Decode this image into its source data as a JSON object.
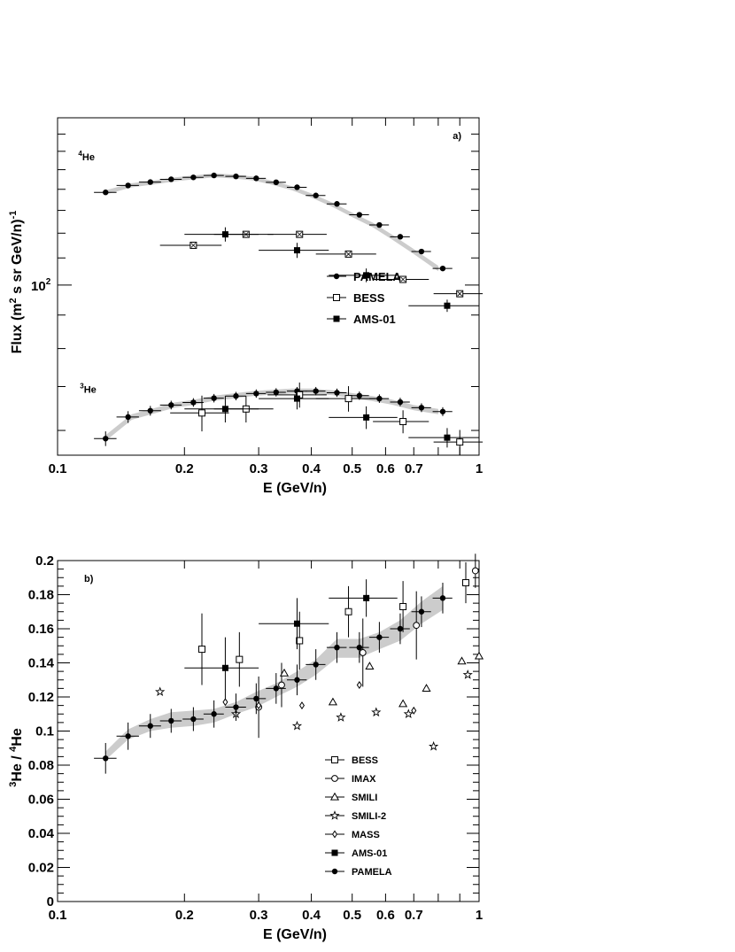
{
  "chart_data": [
    {
      "type": "scatter",
      "panel_label": "a)",
      "xlabel": "E (GeV/n)",
      "ylabel_parts": [
        "Flux (m",
        "2",
        " s sr GeV/n)",
        "-1"
      ],
      "xscale": "log",
      "yscale": "log",
      "xlim": [
        0.1,
        1.0
      ],
      "ylim": [
        55,
        180
      ],
      "x_ticks": [
        {
          "v": 0.1,
          "label": "0.1"
        },
        {
          "v": 0.2,
          "label": "0.2"
        },
        {
          "v": 0.3,
          "label": "0.3"
        },
        {
          "v": 0.4,
          "label": "0.4"
        },
        {
          "v": 0.5,
          "label": "0.5"
        },
        {
          "v": 0.6,
          "label": "0.6"
        },
        {
          "v": 0.7,
          "label": "0.7"
        },
        {
          "v": 1.0,
          "label": "1"
        }
      ],
      "y_ticks": [
        {
          "v": 100,
          "base": "10",
          "exp": "2"
        }
      ],
      "annotations": [
        {
          "text": "He",
          "sup": "4",
          "x": 0.112,
          "y": 155
        },
        {
          "text": "He",
          "sup": "3",
          "x": 0.113,
          "y": 68.5
        }
      ],
      "legend": {
        "placement": "middle-right",
        "entries": [
          "PAMELA",
          "BESS",
          "AMS-01"
        ]
      },
      "bands": [
        {
          "name": "4He",
          "x": [
            0.13,
            0.15,
            0.17,
            0.19,
            0.21,
            0.235,
            0.26,
            0.29,
            0.32,
            0.36,
            0.4,
            0.45,
            0.5,
            0.56,
            0.62,
            0.7,
            0.8
          ],
          "lo": [
            137.5,
            141,
            142.5,
            144,
            145,
            146,
            145.5,
            144.5,
            142.5,
            139.5,
            136,
            131.5,
            127,
            122.5,
            117.5,
            111.5,
            105
          ],
          "hi": [
            139.5,
            143,
            144.5,
            146,
            147,
            148,
            147.5,
            146.5,
            144.5,
            141.5,
            138,
            133.5,
            129,
            124.5,
            119.5,
            113.5,
            107
          ]
        },
        {
          "name": "3He",
          "x": [
            0.13,
            0.15,
            0.17,
            0.19,
            0.21,
            0.235,
            0.26,
            0.29,
            0.32,
            0.36,
            0.4,
            0.45,
            0.5,
            0.56,
            0.62,
            0.7,
            0.8
          ],
          "lo": [
            57.8,
            62.3,
            63.7,
            65,
            65.6,
            66.6,
            67.1,
            67.7,
            68,
            68.3,
            68.3,
            67.9,
            67.2,
            66.5,
            65.7,
            64.4,
            63.5
          ],
          "hi": [
            59,
            63.5,
            64.9,
            66.2,
            66.8,
            67.8,
            68.3,
            68.9,
            69.2,
            69.5,
            69.5,
            69.1,
            68.4,
            67.7,
            66.9,
            65.6,
            64.7
          ]
        }
      ],
      "series": [
        {
          "name": "PAMELA",
          "group": "4He",
          "marker": "filled-circle",
          "x": [
            0.13,
            0.147,
            0.166,
            0.186,
            0.21,
            0.235,
            0.265,
            0.296,
            0.33,
            0.37,
            0.41,
            0.46,
            0.52,
            0.58,
            0.65,
            0.73,
            0.82
          ],
          "y": [
            138.5,
            141.9,
            143.6,
            145,
            146,
            147,
            146.5,
            145.5,
            143.5,
            141,
            137,
            133,
            128,
            123.5,
            118.5,
            112.5,
            106
          ],
          "xerr": [
            0.008,
            0.009,
            0.01,
            0.011,
            0.012,
            0.013,
            0.015,
            0.016,
            0.018,
            0.02,
            0.022,
            0.025,
            0.028,
            0.031,
            0.035,
            0.039,
            0.044
          ],
          "yerr": [
            0,
            0,
            0,
            0,
            0,
            0,
            0,
            0,
            0,
            0,
            0,
            0,
            0,
            0,
            0,
            0,
            0
          ]
        },
        {
          "name": "BESS",
          "group": "4He",
          "marker": "open-square-cross",
          "x": [
            0.21,
            0.28,
            0.375,
            0.49,
            0.66,
            0.9
          ],
          "y": [
            115,
            119.5,
            119.5,
            111.5,
            102,
            97
          ],
          "xerr": [
            0.035,
            0.045,
            0.06,
            0.08,
            0.1,
            0.12
          ],
          "yerr": [
            0,
            0,
            0,
            0,
            0,
            0
          ]
        },
        {
          "name": "AMS-01",
          "group": "4He",
          "marker": "filled-square",
          "x": [
            0.25,
            0.37,
            0.54,
            0.84
          ],
          "y": [
            119.5,
            113,
            103.5,
            93
          ],
          "xerr": [
            0.05,
            0.07,
            0.1,
            0.16
          ],
          "yerr": [
            3,
            3,
            2.5,
            2
          ]
        },
        {
          "name": "PAMELA",
          "group": "3He",
          "marker": "filled-circle",
          "x": [
            0.13,
            0.147,
            0.166,
            0.186,
            0.21,
            0.235,
            0.265,
            0.296,
            0.33,
            0.37,
            0.41,
            0.46,
            0.52,
            0.58,
            0.65,
            0.73,
            0.82
          ],
          "y": [
            58.3,
            62.9,
            64.3,
            65.6,
            66.2,
            67.2,
            67.7,
            68.3,
            68.6,
            68.9,
            68.9,
            68.5,
            67.8,
            67.1,
            66.3,
            65,
            64.1
          ],
          "xerr": [
            0.008,
            0.009,
            0.01,
            0.011,
            0.012,
            0.013,
            0.015,
            0.016,
            0.018,
            0.02,
            0.022,
            0.025,
            0.028,
            0.031,
            0.035,
            0.039,
            0.044
          ],
          "yerr": [
            1.5,
            1.3,
            1.1,
            1.0,
            1.0,
            1.0,
            1.0,
            1.0,
            1.0,
            1.0,
            1.0,
            1.0,
            1.0,
            1.0,
            1.0,
            1.0,
            1.0
          ]
        },
        {
          "name": "BESS",
          "group": "3He",
          "marker": "open-square",
          "x": [
            0.22,
            0.28,
            0.375,
            0.49,
            0.66,
            0.9
          ],
          "y": [
            63.8,
            64.7,
            68.0,
            67.1,
            61.9,
            57.6
          ],
          "xerr": [
            0.035,
            0.045,
            0.06,
            0.08,
            0.1,
            0.12
          ],
          "yerr": [
            4.0,
            3.0,
            3.0,
            3.0,
            2.5,
            2.5
          ]
        },
        {
          "name": "AMS-01",
          "group": "3He",
          "marker": "filled-square",
          "x": [
            0.25,
            0.37,
            0.54,
            0.84
          ],
          "y": [
            64.7,
            67.1,
            62.8,
            58.5
          ],
          "xerr": [
            0.05,
            0.07,
            0.1,
            0.16
          ],
          "yerr": [
            3.0,
            2.5,
            2.5,
            2.0
          ]
        }
      ]
    },
    {
      "type": "scatter",
      "panel_label": "b)",
      "xlabel": "E (GeV/n)",
      "ylabel_parts": [
        "3",
        "He / ",
        "4",
        "He"
      ],
      "xscale": "log",
      "yscale": "linear",
      "xlim": [
        0.1,
        1.0
      ],
      "ylim": [
        0,
        0.2
      ],
      "x_ticks": [
        {
          "v": 0.1,
          "label": "0.1"
        },
        {
          "v": 0.2,
          "label": "0.2"
        },
        {
          "v": 0.3,
          "label": "0.3"
        },
        {
          "v": 0.4,
          "label": "0.4"
        },
        {
          "v": 0.5,
          "label": "0.5"
        },
        {
          "v": 0.6,
          "label": "0.6"
        },
        {
          "v": 0.7,
          "label": "0.7"
        },
        {
          "v": 1.0,
          "label": "1"
        }
      ],
      "y_ticks": [
        {
          "v": 0,
          "label": "0"
        },
        {
          "v": 0.02,
          "label": "0.02"
        },
        {
          "v": 0.04,
          "label": "0.04"
        },
        {
          "v": 0.06,
          "label": "0.06"
        },
        {
          "v": 0.08,
          "label": "0.08"
        },
        {
          "v": 0.1,
          "label": "0.1"
        },
        {
          "v": 0.12,
          "label": "0.12"
        },
        {
          "v": 0.14,
          "label": "0.14"
        },
        {
          "v": 0.16,
          "label": "0.16"
        },
        {
          "v": 0.18,
          "label": "0.18"
        },
        {
          "v": 0.2,
          "label": "0.2"
        }
      ],
      "legend": {
        "placement": "bottom-center",
        "entries": [
          "BESS",
          "IMAX",
          "SMILI",
          "SMILI-2",
          "MASS",
          "AMS-01",
          "PAMELA"
        ]
      },
      "bands": [
        {
          "name": "PAMELA band",
          "x": [
            0.13,
            0.147,
            0.166,
            0.186,
            0.21,
            0.235,
            0.265,
            0.296,
            0.33,
            0.37,
            0.41,
            0.46,
            0.52,
            0.58,
            0.65,
            0.73,
            0.82
          ],
          "lo": [
            0.083,
            0.095,
            0.1,
            0.102,
            0.103,
            0.105,
            0.11,
            0.114,
            0.12,
            0.126,
            0.133,
            0.143,
            0.143,
            0.148,
            0.153,
            0.163,
            0.171
          ],
          "hi": [
            0.088,
            0.101,
            0.107,
            0.111,
            0.112,
            0.113,
            0.117,
            0.123,
            0.128,
            0.135,
            0.142,
            0.154,
            0.154,
            0.158,
            0.165,
            0.176,
            0.185
          ]
        }
      ],
      "series": [
        {
          "name": "BESS",
          "marker": "open-square",
          "x": [
            0.22,
            0.27,
            0.375,
            0.49,
            0.66,
            0.93
          ],
          "y": [
            0.148,
            0.142,
            0.153,
            0.17,
            0.173,
            0.187
          ],
          "xerr": [
            0,
            0,
            0,
            0,
            0,
            0
          ],
          "yerr": [
            0.021,
            0.016,
            0.017,
            0.015,
            0.015,
            0.012
          ]
        },
        {
          "name": "IMAX",
          "marker": "open-circle",
          "x": [
            0.3,
            0.34,
            0.53,
            0.71,
            0.98
          ],
          "y": [
            0.114,
            0.127,
            0.146,
            0.162,
            0.194
          ],
          "xerr": [
            0,
            0,
            0,
            0,
            0
          ],
          "yerr": [
            0.018,
            0.013,
            0.02,
            0.02,
            0.01
          ]
        },
        {
          "name": "SMILI",
          "marker": "open-triangle",
          "x": [
            0.345,
            0.45,
            0.55,
            0.66,
            0.75,
            0.91,
            1.0
          ],
          "y": [
            0.134,
            0.117,
            0.138,
            0.116,
            0.125,
            0.141,
            0.144
          ]
        },
        {
          "name": "SMILI-2",
          "marker": "star",
          "x": [
            0.175,
            0.265,
            0.37,
            0.47,
            0.57,
            0.68,
            0.78,
            0.94
          ],
          "y": [
            0.123,
            0.11,
            0.103,
            0.108,
            0.111,
            0.11,
            0.091,
            0.133
          ]
        },
        {
          "name": "MASS",
          "marker": "open-diamond",
          "x": [
            0.25,
            0.3,
            0.38,
            0.52,
            0.7
          ],
          "y": [
            0.117,
            0.115,
            0.115,
            0.127,
            0.112
          ]
        },
        {
          "name": "AMS-01",
          "marker": "filled-square",
          "x": [
            0.25,
            0.37,
            0.54
          ],
          "y": [
            0.137,
            0.163,
            0.178
          ],
          "xerr": [
            0.05,
            0.07,
            0.1
          ],
          "yerr": [
            0.018,
            0.015,
            0.011
          ]
        },
        {
          "name": "PAMELA",
          "marker": "filled-circle",
          "x": [
            0.13,
            0.147,
            0.166,
            0.186,
            0.21,
            0.235,
            0.265,
            0.296,
            0.33,
            0.37,
            0.41,
            0.46,
            0.52,
            0.58,
            0.65,
            0.73,
            0.82
          ],
          "y": [
            0.084,
            0.097,
            0.103,
            0.106,
            0.107,
            0.11,
            0.114,
            0.119,
            0.125,
            0.13,
            0.139,
            0.149,
            0.149,
            0.155,
            0.16,
            0.17,
            0.178
          ],
          "xerr": [
            0.008,
            0.009,
            0.01,
            0.011,
            0.012,
            0.013,
            0.015,
            0.016,
            0.018,
            0.02,
            0.022,
            0.025,
            0.028,
            0.031,
            0.035,
            0.039,
            0.044
          ],
          "yerr": [
            0.009,
            0.008,
            0.007,
            0.007,
            0.007,
            0.008,
            0.008,
            0.009,
            0.009,
            0.009,
            0.009,
            0.009,
            0.009,
            0.009,
            0.009,
            0.009,
            0.009
          ]
        }
      ]
    }
  ]
}
